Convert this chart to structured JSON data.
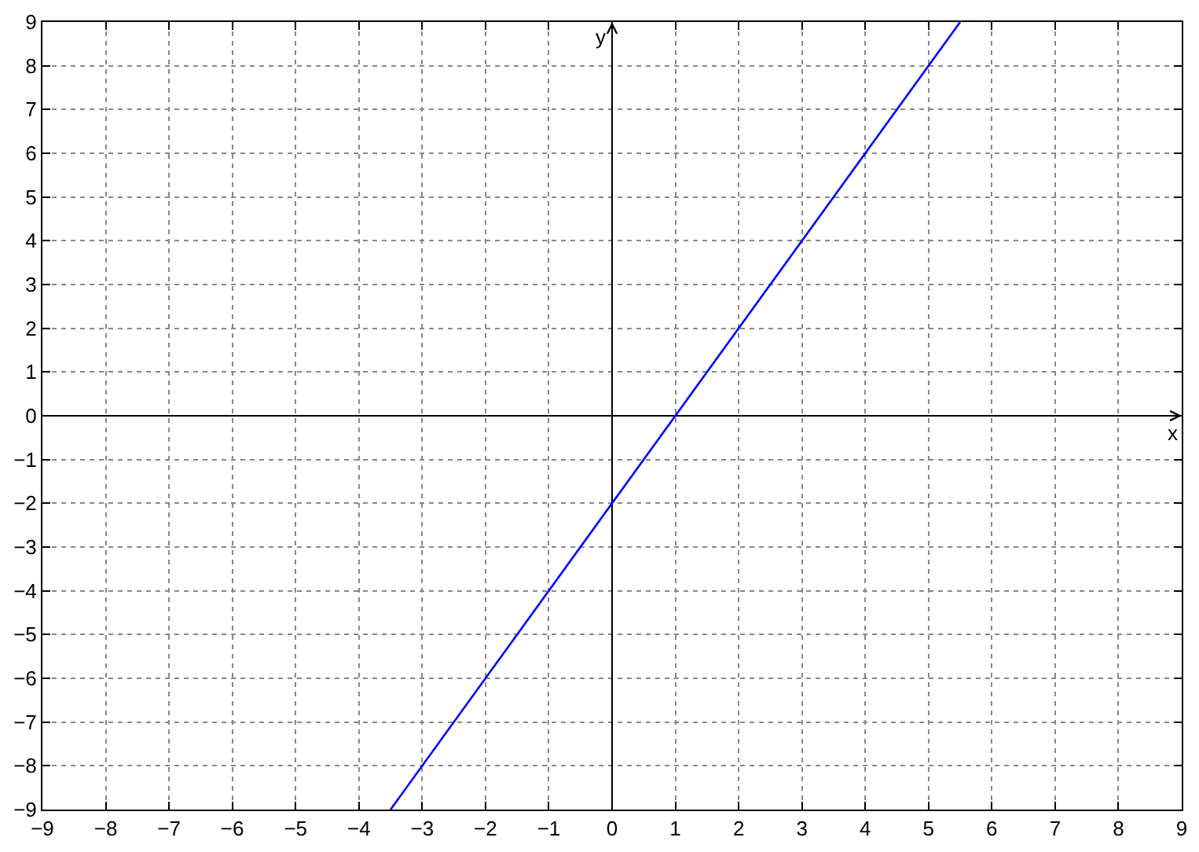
{
  "chart_data": {
    "type": "line",
    "xlabel": "x",
    "ylabel": "y",
    "x": [
      -3.5,
      5.5
    ],
    "series": [
      {
        "color": "#0000ff",
        "values": [
          -9,
          9
        ]
      }
    ],
    "xlim": [
      -9,
      9
    ],
    "ylim": [
      -9,
      9
    ],
    "xticks": [
      -9,
      -8,
      -7,
      -6,
      -5,
      -4,
      -3,
      -2,
      -1,
      0,
      1,
      2,
      3,
      4,
      5,
      6,
      7,
      8,
      9
    ],
    "yticks": [
      -9,
      -8,
      -7,
      -6,
      -5,
      -4,
      -3,
      -2,
      -1,
      0,
      1,
      2,
      3,
      4,
      5,
      6,
      7,
      8,
      9
    ],
    "grid": true,
    "marker": "none"
  }
}
